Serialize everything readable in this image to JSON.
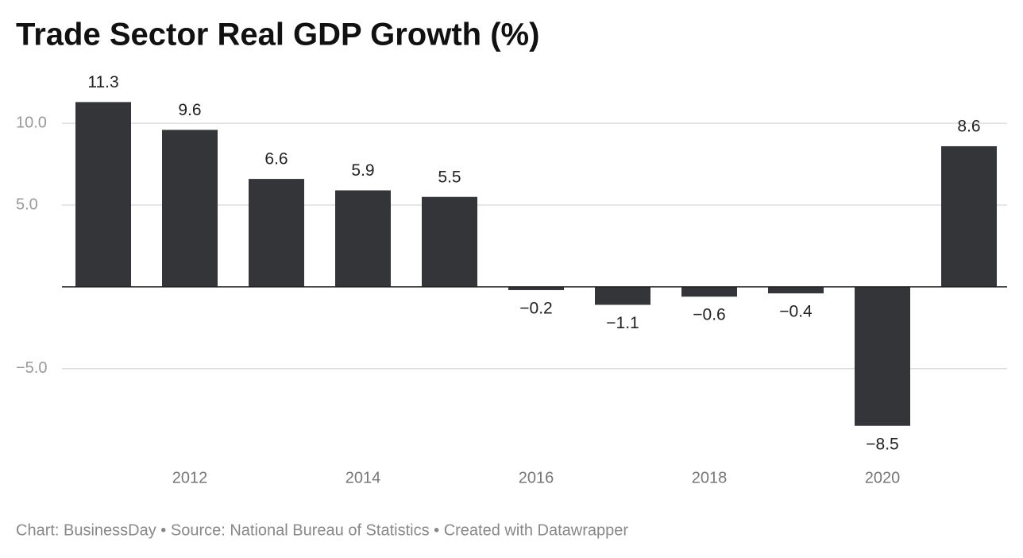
{
  "chart_data": {
    "type": "bar",
    "title": "Trade Sector Real GDP Growth (%)",
    "footer": "Chart: BusinessDay • Source: National Bureau of Statistics • Created with Datawrapper",
    "x": [
      2011,
      2012,
      2013,
      2014,
      2015,
      2016,
      2017,
      2018,
      2019,
      2020,
      2021
    ],
    "xlim": [
      2010.5,
      2021.5
    ],
    "xticks": [
      2012,
      2014,
      2016,
      2018,
      2020
    ],
    "values": [
      11.3,
      9.6,
      6.6,
      5.9,
      5.5,
      -0.2,
      -1.1,
      -0.6,
      -0.4,
      -8.5,
      8.6
    ],
    "value_labels": [
      "11.3",
      "9.6",
      "6.6",
      "5.9",
      "5.5",
      "−0.2",
      "−1.1",
      "−0.6",
      "−0.4",
      "−8.5",
      "8.6"
    ],
    "color": "#333538",
    "ylim": [
      -9,
      12
    ],
    "yticks": [
      {
        "value": -5,
        "label": "−5.0"
      },
      {
        "value": 5,
        "label": "5.0"
      },
      {
        "value": 10,
        "label": "10.0"
      }
    ],
    "grid": true
  }
}
